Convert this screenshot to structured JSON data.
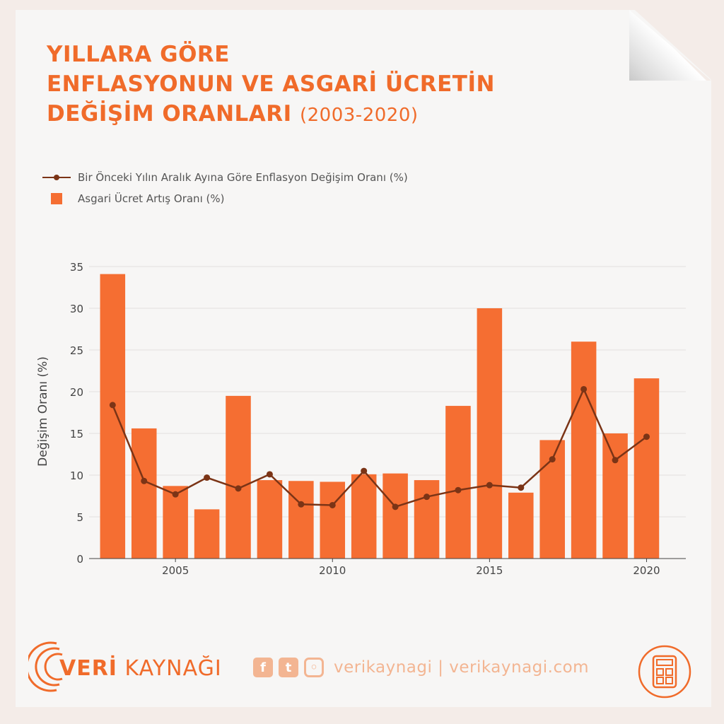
{
  "title": {
    "line1": "YILLARA GÖRE",
    "line2": "ENFLASYONUN VE ASGARİ ÜCRETİN",
    "line3": "DEĞİŞİM ORANLARI",
    "years": "(2003-2020)"
  },
  "legend": {
    "line_label": "Bir Önceki Yılın Aralık Ayına Göre Enflasyon Değişim Oranı (%)",
    "bar_label": "Asgari Ücret Artış Oranı (%)"
  },
  "colors": {
    "accent": "#f06b2a",
    "bar": "#f56e32",
    "line": "#7b3416",
    "social": "#f3b592"
  },
  "chart_data": {
    "type": "bar",
    "x": [
      2003,
      2004,
      2005,
      2006,
      2007,
      2008,
      2009,
      2010,
      2011,
      2012,
      2013,
      2014,
      2015,
      2016,
      2017,
      2018,
      2019,
      2020
    ],
    "series": [
      {
        "name": "Asgari Ücret Artış Oranı (%)",
        "type": "bar",
        "values": [
          34.1,
          15.6,
          8.7,
          5.9,
          19.5,
          9.4,
          9.3,
          9.2,
          10.1,
          10.2,
          9.4,
          18.3,
          30.0,
          7.9,
          14.2,
          26.0,
          15.0,
          21.6
        ]
      },
      {
        "name": "Bir Önceki Yılın Aralık Ayına Göre Enflasyon Değişim Oranı (%)",
        "type": "line",
        "values": [
          18.4,
          9.3,
          7.7,
          9.7,
          8.4,
          10.1,
          6.5,
          6.4,
          10.5,
          6.2,
          7.4,
          8.2,
          8.8,
          8.5,
          11.9,
          20.3,
          11.8,
          14.6
        ]
      }
    ],
    "ylabel": "Değişim Oranı (%)",
    "xlabel": "",
    "ylim": [
      0,
      35
    ],
    "yticks": [
      0,
      5,
      10,
      15,
      20,
      25,
      30,
      35
    ],
    "xticks": [
      2005,
      2010,
      2015,
      2020
    ],
    "grid": true,
    "legend_position": "top-left"
  },
  "footer": {
    "brand_bold": "VERİ",
    "brand_rest": " KAYNAĞI",
    "social_text": "verikaynagi | verikaynagi.com",
    "icons": [
      "facebook-icon",
      "twitter-icon",
      "instagram-icon",
      "calculator-icon"
    ]
  }
}
